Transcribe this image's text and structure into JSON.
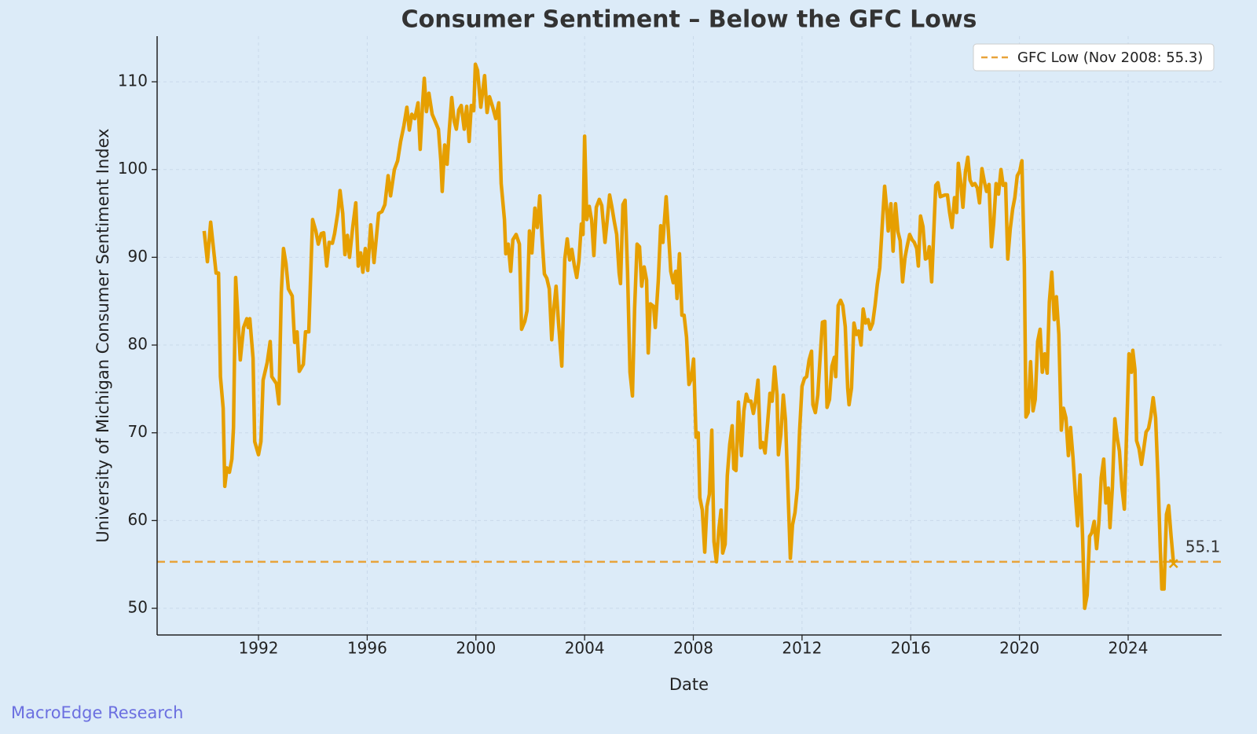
{
  "chart_data": {
    "type": "line",
    "title": "Consumer Sentiment – Below the GFC Lows",
    "xlabel": "Date",
    "ylabel": "University of Michigan Consumer Sentiment Index",
    "watermark": "MacroEdge Research",
    "xlim": [
      1988.27,
      2027.44
    ],
    "ylim": [
      46.96,
      115.2
    ],
    "xticks": [
      1992,
      1996,
      2000,
      2004,
      2008,
      2012,
      2016,
      2020,
      2024
    ],
    "yticks": [
      50,
      60,
      70,
      80,
      90,
      100,
      110
    ],
    "grid": true,
    "legend": "upper right",
    "reference_line": {
      "label": "GFC Low (Nov 2008: 55.3)",
      "value": 55.3,
      "color": "#e8a33a",
      "style": "dashed"
    },
    "last_point_label": true,
    "x": [
      1990.0,
      1990.12,
      1990.24,
      1990.44,
      1990.53,
      1990.6,
      1990.7,
      1990.76,
      1990.84,
      1990.93,
      1991.02,
      1991.08,
      1991.16,
      1991.33,
      1991.45,
      1991.57,
      1991.62,
      1991.68,
      1991.8,
      1991.86,
      1992.0,
      1992.09,
      1992.17,
      1992.32,
      1992.43,
      1992.49,
      1992.66,
      1992.75,
      1992.84,
      1992.92,
      1993.01,
      1993.1,
      1993.24,
      1993.33,
      1993.42,
      1993.5,
      1993.65,
      1993.73,
      1993.85,
      1993.99,
      1994.11,
      1994.2,
      1994.31,
      1994.4,
      1994.51,
      1994.6,
      1994.72,
      1994.8,
      1994.92,
      1995.0,
      1995.1,
      1995.18,
      1995.27,
      1995.35,
      1995.47,
      1995.58,
      1995.67,
      1995.76,
      1995.84,
      1995.93,
      1996.02,
      1996.13,
      1996.25,
      1996.42,
      1996.54,
      1996.65,
      1996.77,
      1996.86,
      1997.0,
      1997.12,
      1997.23,
      1997.35,
      1997.46,
      1997.55,
      1997.64,
      1997.75,
      1997.87,
      1997.95,
      1998.04,
      1998.1,
      1998.18,
      1998.27,
      1998.39,
      1998.5,
      1998.62,
      1998.71,
      1998.76,
      1998.85,
      1998.94,
      1999.02,
      1999.11,
      1999.2,
      1999.28,
      1999.37,
      1999.46,
      1999.57,
      1999.66,
      1999.75,
      1999.83,
      1999.92,
      1999.98,
      2000.06,
      2000.18,
      2000.32,
      2000.41,
      2000.5,
      2000.61,
      2000.73,
      2000.84,
      2000.93,
      2001.05,
      2001.1,
      2001.19,
      2001.28,
      2001.36,
      2001.48,
      2001.6,
      2001.68,
      2001.8,
      2001.88,
      2001.97,
      2002.06,
      2002.17,
      2002.26,
      2002.35,
      2002.43,
      2002.52,
      2002.61,
      2002.7,
      2002.79,
      2002.87,
      2002.95,
      2003.04,
      2003.16,
      2003.27,
      2003.36,
      2003.45,
      2003.53,
      2003.62,
      2003.71,
      2003.79,
      2003.88,
      2003.94,
      2004.0,
      2004.08,
      2004.17,
      2004.26,
      2004.34,
      2004.43,
      2004.54,
      2004.63,
      2004.75,
      2004.83,
      2004.92,
      2005.0,
      2005.09,
      2005.18,
      2005.27,
      2005.32,
      2005.41,
      2005.49,
      2005.58,
      2005.67,
      2005.76,
      2005.84,
      2005.93,
      2006.02,
      2006.1,
      2006.19,
      2006.28,
      2006.34,
      2006.42,
      2006.54,
      2006.6,
      2006.71,
      2006.8,
      2006.88,
      2007.0,
      2007.09,
      2007.17,
      2007.26,
      2007.35,
      2007.4,
      2007.49,
      2007.58,
      2007.66,
      2007.75,
      2007.84,
      2007.92,
      2008.01,
      2008.1,
      2008.18,
      2008.24,
      2008.33,
      2008.42,
      2008.5,
      2008.59,
      2008.68,
      2008.76,
      2008.85,
      2008.94,
      2009.02,
      2009.08,
      2009.17,
      2009.25,
      2009.34,
      2009.43,
      2009.49,
      2009.57,
      2009.66,
      2009.77,
      2009.86,
      2009.95,
      2010.03,
      2010.12,
      2010.21,
      2010.29,
      2010.38,
      2010.47,
      2010.55,
      2010.64,
      2010.73,
      2010.82,
      2010.9,
      2010.99,
      2011.08,
      2011.13,
      2011.22,
      2011.31,
      2011.39,
      2011.48,
      2011.57,
      2011.65,
      2011.74,
      2011.83,
      2011.91,
      2012.0,
      2012.09,
      2012.17,
      2012.26,
      2012.35,
      2012.4,
      2012.49,
      2012.58,
      2012.66,
      2012.75,
      2012.84,
      2012.92,
      2013.01,
      2013.1,
      2013.19,
      2013.24,
      2013.33,
      2013.42,
      2013.5,
      2013.59,
      2013.68,
      2013.73,
      2013.82,
      2013.91,
      2014.0,
      2014.08,
      2014.17,
      2014.25,
      2014.34,
      2014.43,
      2014.51,
      2014.6,
      2014.69,
      2014.77,
      2014.86,
      2014.95,
      2015.04,
      2015.12,
      2015.17,
      2015.27,
      2015.35,
      2015.44,
      2015.53,
      2015.61,
      2015.7,
      2015.79,
      2015.87,
      2015.96,
      2016.05,
      2016.13,
      2016.22,
      2016.28,
      2016.36,
      2016.45,
      2016.54,
      2016.63,
      2016.68,
      2016.77,
      2016.86,
      2016.92,
      2017.0,
      2017.09,
      2017.17,
      2017.26,
      2017.35,
      2017.43,
      2017.52,
      2017.61,
      2017.69,
      2017.75,
      2017.84,
      2017.92,
      2018.01,
      2018.1,
      2018.18,
      2018.27,
      2018.36,
      2018.45,
      2018.53,
      2018.62,
      2018.71,
      2018.79,
      2018.88,
      2018.97,
      2019.05,
      2019.14,
      2019.23,
      2019.32,
      2019.4,
      2019.49,
      2019.57,
      2019.66,
      2019.75,
      2019.83,
      2019.92,
      2020.01,
      2020.09,
      2020.18,
      2020.24,
      2020.32,
      2020.41,
      2020.5,
      2020.58,
      2020.67,
      2020.76,
      2020.84,
      2020.93,
      2021.02,
      2021.1,
      2021.19,
      2021.28,
      2021.36,
      2021.45,
      2021.54,
      2021.62,
      2021.71,
      2021.8,
      2021.88,
      2021.97,
      2022.06,
      2022.14,
      2022.23,
      2022.32,
      2022.4,
      2022.49,
      2022.58,
      2022.66,
      2022.75,
      2022.84,
      2022.92,
      2023.01,
      2023.1,
      2023.18,
      2023.27,
      2023.33,
      2023.42,
      2023.51,
      2023.6,
      2023.68,
      2023.77,
      2023.86,
      2023.94,
      2024.03,
      2024.12,
      2024.17,
      2024.25,
      2024.31,
      2024.4,
      2024.49,
      2024.57,
      2024.66,
      2024.75,
      2024.83,
      2024.92,
      2025.01,
      2025.1,
      2025.18,
      2025.24,
      2025.32,
      2025.41,
      2025.49,
      2025.58,
      2025.67
    ],
    "series": [
      {
        "color": "#e69f00",
        "values": [
          93,
          89.5,
          94,
          88.2,
          88.2,
          76.4,
          72.8,
          63.9,
          66,
          65.5,
          67,
          70.6,
          87.7,
          78.3,
          82,
          83,
          82,
          83,
          78.5,
          69,
          67.5,
          69,
          76,
          78,
          80.4,
          76.4,
          75.6,
          73.3,
          86,
          91,
          89.3,
          86.4,
          85.6,
          80.3,
          81.5,
          77,
          77.8,
          81.5,
          81.5,
          94.3,
          93,
          91.5,
          92.7,
          92.8,
          89,
          91.7,
          91.6,
          92.7,
          95.1,
          97.6,
          95,
          90.3,
          92.5,
          90,
          93.5,
          96.2,
          89,
          90.5,
          88.3,
          91,
          88.5,
          93.7,
          89.4,
          95,
          95.2,
          96,
          99.3,
          97,
          100,
          101,
          103.2,
          105,
          107.1,
          104.5,
          106.3,
          105.8,
          107.6,
          102.3,
          107.6,
          110.4,
          106.6,
          108.7,
          106.3,
          105.5,
          104.6,
          101,
          97.5,
          102.8,
          100.6,
          104.5,
          108.2,
          105.5,
          104.6,
          106.8,
          107.3,
          104.6,
          107.2,
          103.2,
          107.3,
          106.7,
          112,
          111.3,
          107.1,
          110.7,
          106.5,
          108.3,
          107.2,
          105.8,
          107.6,
          98.4,
          94.3,
          90.4,
          91.5,
          88.4,
          92,
          92.6,
          91.5,
          81.8,
          82.7,
          83.9,
          93,
          90.5,
          95.6,
          93.4,
          97,
          92.4,
          88.1,
          87.6,
          86.4,
          80.6,
          84.2,
          86.7,
          82.5,
          77.6,
          89.8,
          92.1,
          89.7,
          90.9,
          89.1,
          87.7,
          89.6,
          93.8,
          92.6,
          103.8,
          94.3,
          95.8,
          94.2,
          90.2,
          95.7,
          96.6,
          95.9,
          91.7,
          94.2,
          97.1,
          95.8,
          94.1,
          92.6,
          88.2,
          87,
          96,
          96.5,
          88.3,
          76.9,
          74.2,
          84.2,
          91.5,
          91.2,
          86.7,
          88.9,
          87.4,
          79.1,
          84.7,
          84.4,
          82,
          87.3,
          93.6,
          91.7,
          96.9,
          92.6,
          88.4,
          87.1,
          88.4,
          85.3,
          90.4,
          83.4,
          83.4,
          80.9,
          75.5,
          76.1,
          78.4,
          69.5,
          70,
          62.6,
          61.2,
          56.4,
          61.6,
          63,
          70.3,
          57.6,
          55.3,
          59,
          61.2,
          56.3,
          57.3,
          65.1,
          68.7,
          70.8,
          65.9,
          65.7,
          73.5,
          67.4,
          72.5,
          74.4,
          73.6,
          73.6,
          72.2,
          73.6,
          76,
          68.3,
          68.9,
          67.7,
          71,
          74.5,
          73.6,
          77.5,
          74.3,
          67.5,
          69.8,
          74.3,
          71.5,
          63.7,
          55.7,
          59.5,
          60.9,
          63.7,
          70.2,
          75.3,
          76.2,
          76.4,
          78.3,
          79.3,
          73.2,
          72.3,
          74.3,
          78.3,
          82.6,
          82.7,
          72.9,
          73.8,
          77.6,
          78.6,
          76.4,
          84.5,
          85.1,
          84.5,
          82.1,
          75.1,
          73.2,
          75.1,
          82.5,
          81.2,
          81.6,
          80,
          84.1,
          82.5,
          82.9,
          81.8,
          82.5,
          84.6,
          86.9,
          88.8,
          93.6,
          98.1,
          95.4,
          93,
          96.1,
          90.7,
          96.1,
          92.9,
          91.9,
          87.2,
          90,
          91.3,
          92.6,
          92,
          91.7,
          91,
          89,
          94.7,
          93.5,
          89.8,
          90,
          91.2,
          87.2,
          93.8,
          98.2,
          98.5,
          96.9,
          97,
          97.1,
          97.1,
          95.1,
          93.4,
          96.8,
          95.1,
          100.7,
          98.5,
          95.7,
          99.7,
          101.4,
          98.8,
          98.2,
          98.4,
          97.9,
          96.2,
          100.1,
          98.6,
          97.5,
          98.3,
          91.2,
          93.8,
          98.4,
          97.2,
          100,
          98.2,
          98.4,
          89.8,
          93.2,
          95.5,
          96.8,
          99.3,
          99.8,
          101,
          89.1,
          71.8,
          72.3,
          78.1,
          72.5,
          73.8,
          80.4,
          81.8,
          76.9,
          79,
          76.8,
          84.9,
          88.3,
          82.9,
          85.5,
          81.2,
          70.3,
          72.8,
          71.7,
          67.4,
          70.6,
          67.2,
          62.8,
          59.4,
          65.2,
          58.4,
          50,
          51.5,
          58.2,
          58.6,
          59.9,
          56.8,
          59.7,
          64.9,
          67,
          62,
          63.7,
          59.2,
          63.8,
          71.6,
          69.4,
          67.9,
          63.8,
          61.3,
          69.7,
          79,
          76.9,
          79.4,
          77.2,
          69.1,
          68.2,
          66.4,
          68.1,
          70.1,
          70.5,
          71.8,
          74,
          71.7,
          64.7,
          57,
          52.2,
          52.2,
          60.7,
          61.7,
          58.2,
          55.1
        ]
      }
    ]
  }
}
